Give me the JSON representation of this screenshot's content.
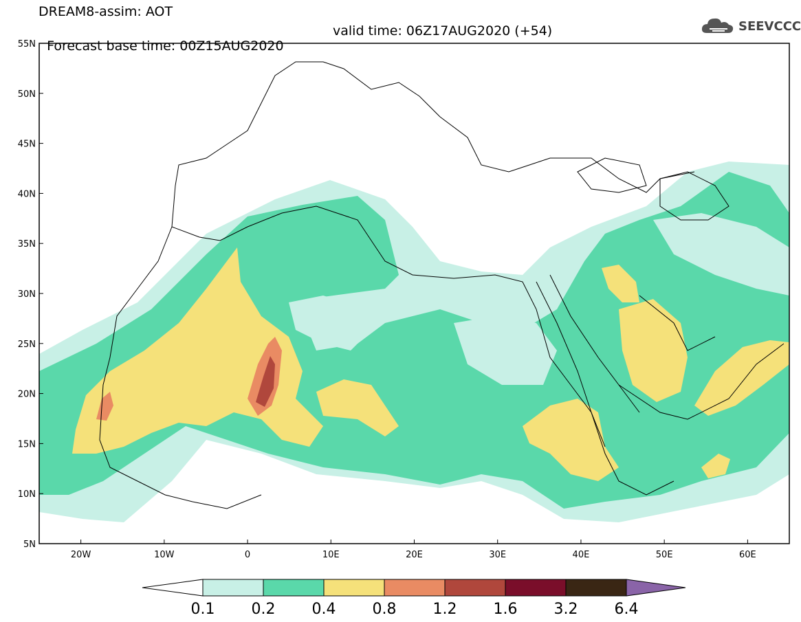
{
  "header": {
    "title": "DREAM8-assim: AOT",
    "base_time": "Forecast base time: 00Z15AUG2020",
    "valid_time": "valid time: 06Z17AUG2020 (+54)"
  },
  "logo": {
    "text": "SEEVCCC",
    "icon": "cloud-icon"
  },
  "map": {
    "lat_labels": [
      "55N",
      "50N",
      "45N",
      "40N",
      "35N",
      "30N",
      "25N",
      "20N",
      "15N",
      "10N",
      "5N"
    ],
    "lon_labels": [
      "20W",
      "10W",
      "0",
      "10E",
      "20E",
      "30E",
      "40E",
      "50E",
      "60E"
    ],
    "extent": {
      "lon": [
        -25,
        65
      ],
      "lat": [
        5,
        55
      ]
    }
  },
  "colorbar": {
    "colors": [
      "#ffffff",
      "#c8f0e6",
      "#5ad8aa",
      "#f5e17a",
      "#e98b63",
      "#b0473c",
      "#7a0e2a",
      "#3a2614",
      "#8a64a8"
    ],
    "labels": [
      "0.1",
      "0.2",
      "0.4",
      "0.8",
      "1.2",
      "1.6",
      "3.2",
      "6.4"
    ]
  }
}
